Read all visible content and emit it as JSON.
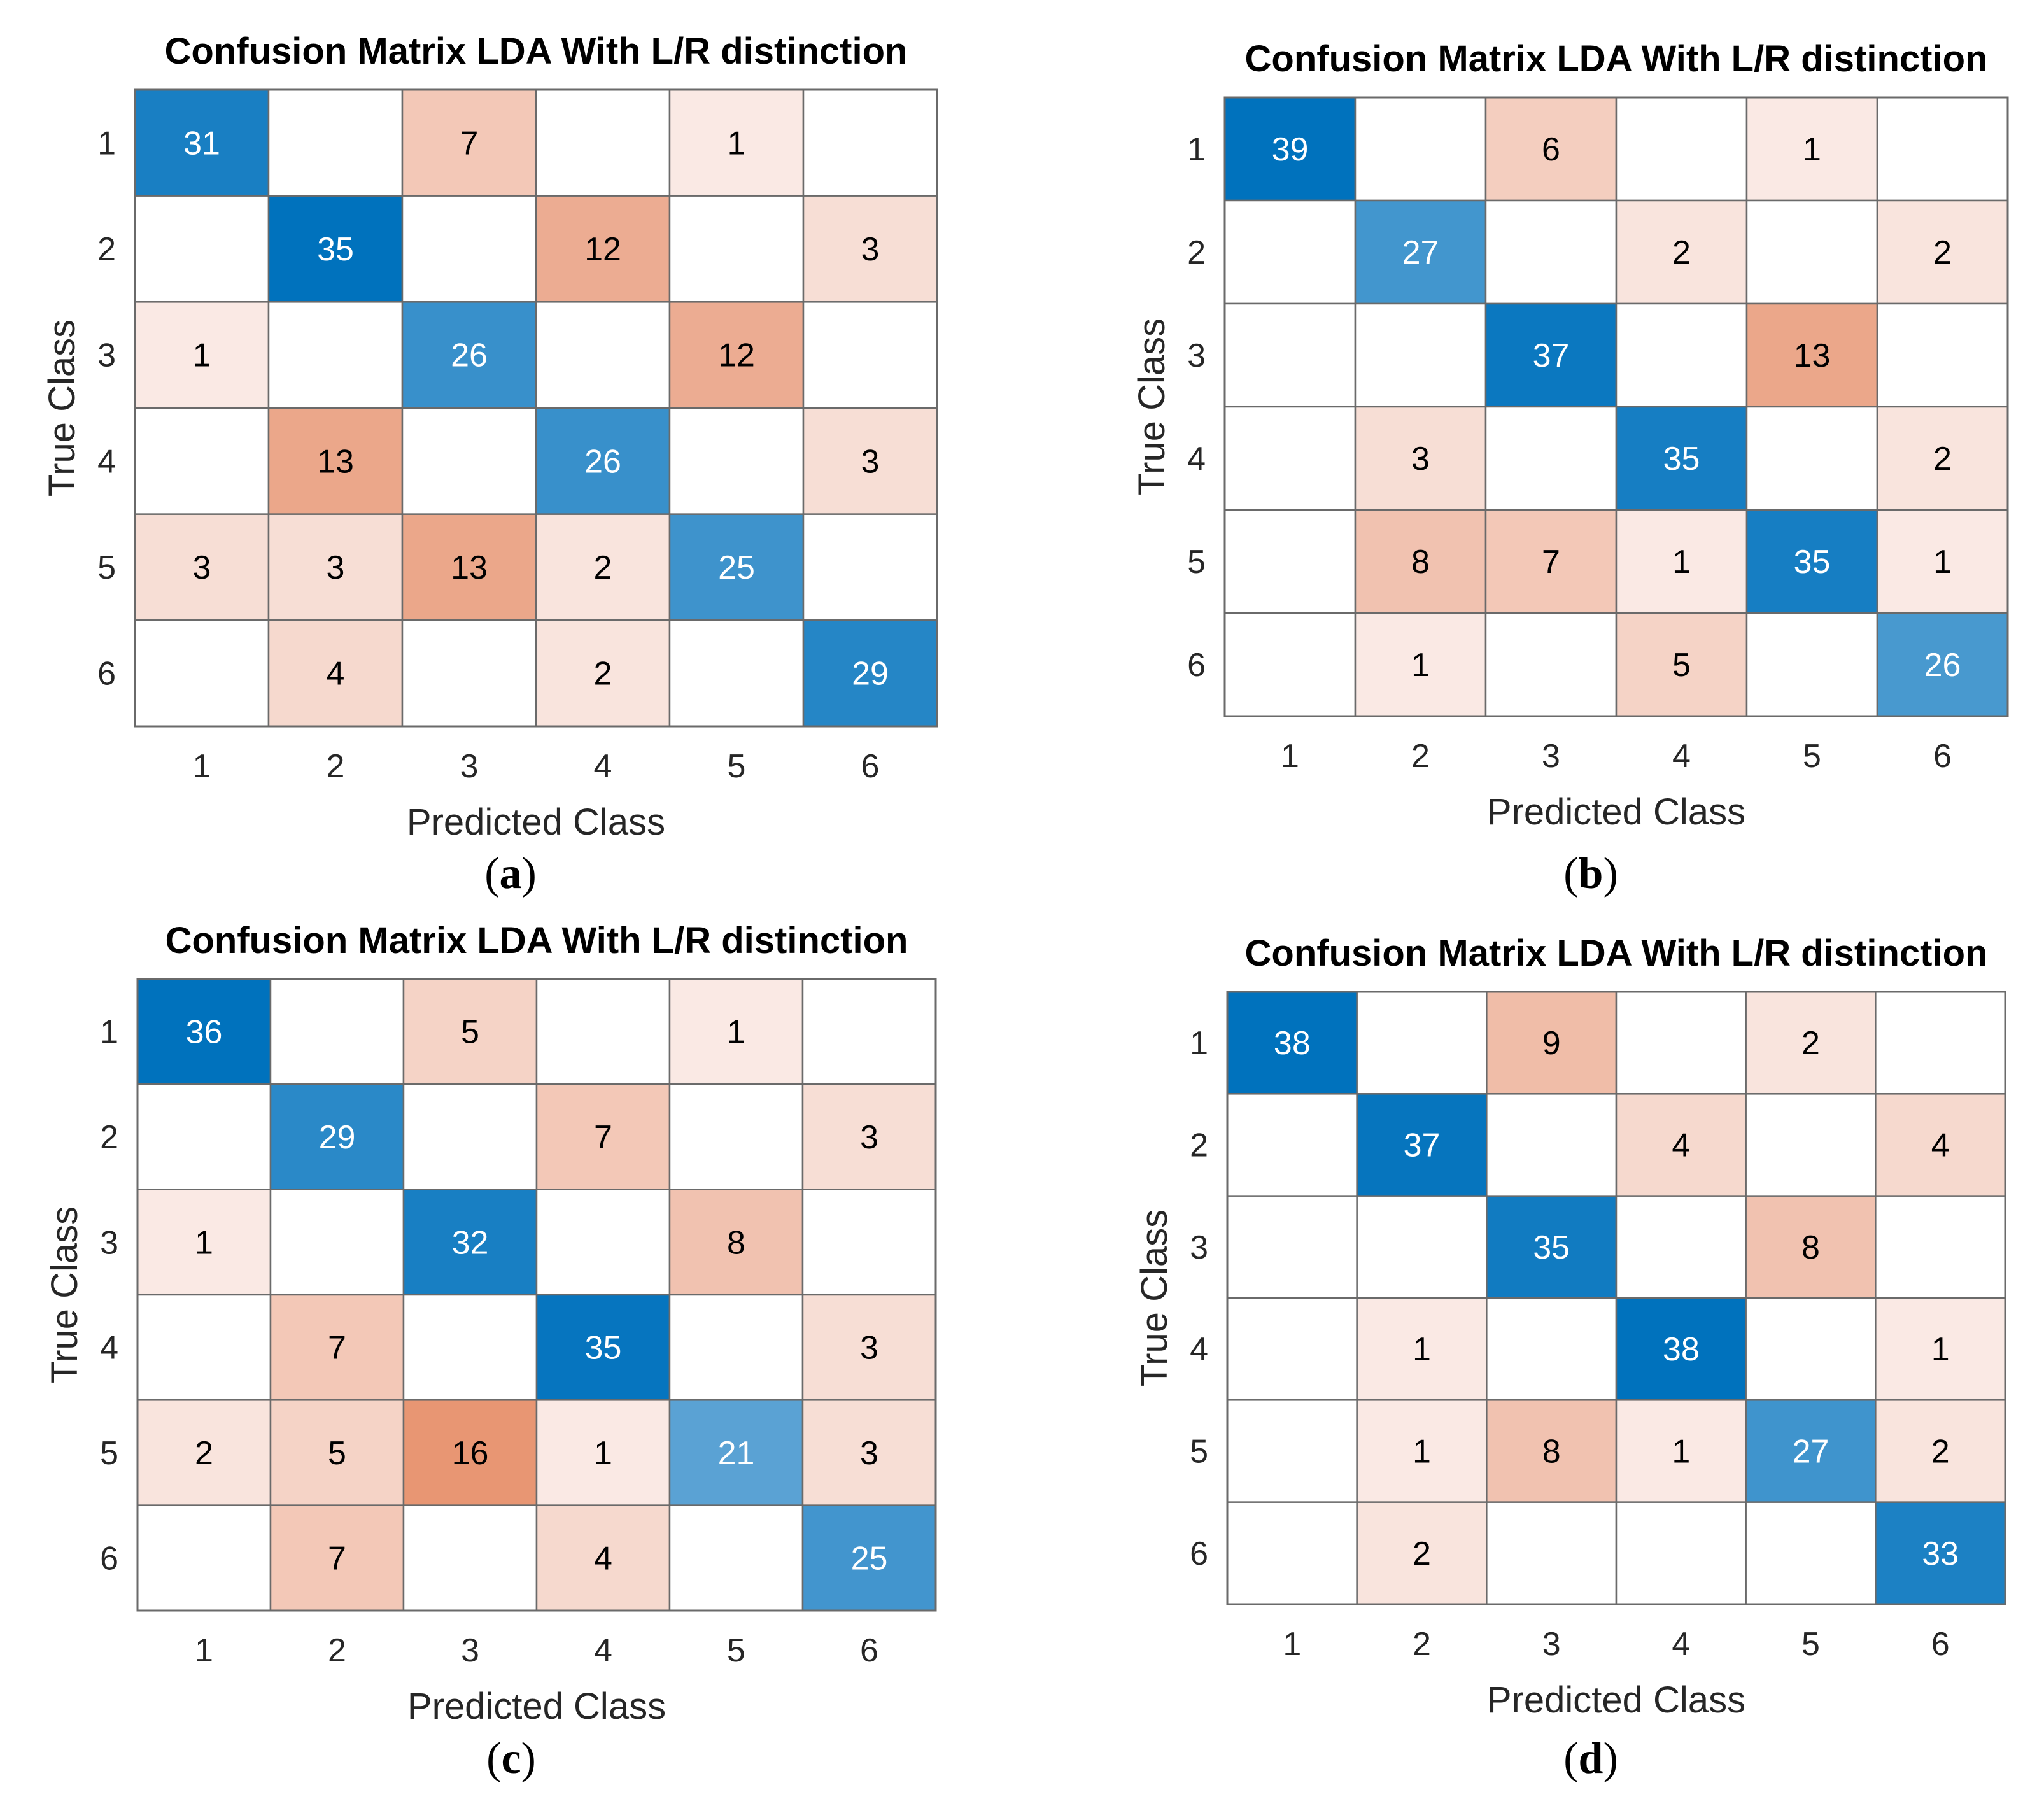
{
  "chart_data": [
    {
      "type": "heatmap",
      "panel_label": "a",
      "title": "Confusion Matrix LDA With L/R distinction",
      "xlabel": "Predicted Class",
      "ylabel": "True Class",
      "row_labels": [
        "1",
        "2",
        "3",
        "4",
        "5",
        "6"
      ],
      "col_labels": [
        "1",
        "2",
        "3",
        "4",
        "5",
        "6"
      ],
      "matrix": [
        [
          31,
          0,
          7,
          0,
          1,
          0
        ],
        [
          0,
          35,
          0,
          12,
          0,
          3
        ],
        [
          1,
          0,
          26,
          0,
          12,
          0
        ],
        [
          0,
          13,
          0,
          26,
          0,
          3
        ],
        [
          3,
          3,
          13,
          2,
          25,
          0
        ],
        [
          0,
          4,
          0,
          2,
          0,
          29
        ]
      ]
    },
    {
      "type": "heatmap",
      "panel_label": "b",
      "title": "Confusion Matrix LDA With L/R distinction",
      "xlabel": "Predicted Class",
      "ylabel": "True Class",
      "row_labels": [
        "1",
        "2",
        "3",
        "4",
        "5",
        "6"
      ],
      "col_labels": [
        "1",
        "2",
        "3",
        "4",
        "5",
        "6"
      ],
      "matrix": [
        [
          39,
          0,
          6,
          0,
          1,
          0
        ],
        [
          0,
          27,
          0,
          2,
          0,
          2
        ],
        [
          0,
          0,
          37,
          0,
          13,
          0
        ],
        [
          0,
          3,
          0,
          35,
          0,
          2
        ],
        [
          0,
          8,
          7,
          1,
          35,
          1
        ],
        [
          0,
          1,
          0,
          5,
          0,
          26
        ]
      ]
    },
    {
      "type": "heatmap",
      "panel_label": "c",
      "title": "Confusion Matrix LDA With L/R distinction",
      "xlabel": "Predicted Class",
      "ylabel": "True Class",
      "row_labels": [
        "1",
        "2",
        "3",
        "4",
        "5",
        "6"
      ],
      "col_labels": [
        "1",
        "2",
        "3",
        "4",
        "5",
        "6"
      ],
      "matrix": [
        [
          36,
          0,
          5,
          0,
          1,
          0
        ],
        [
          0,
          29,
          0,
          7,
          0,
          3
        ],
        [
          1,
          0,
          32,
          0,
          8,
          0
        ],
        [
          0,
          7,
          0,
          35,
          0,
          3
        ],
        [
          2,
          5,
          16,
          1,
          21,
          3
        ],
        [
          0,
          7,
          0,
          4,
          0,
          25
        ]
      ]
    },
    {
      "type": "heatmap",
      "panel_label": "d",
      "title": "Confusion Matrix LDA With L/R distinction",
      "xlabel": "Predicted Class",
      "ylabel": "True Class",
      "row_labels": [
        "1",
        "2",
        "3",
        "4",
        "5",
        "6"
      ],
      "col_labels": [
        "1",
        "2",
        "3",
        "4",
        "5",
        "6"
      ],
      "matrix": [
        [
          38,
          0,
          9,
          0,
          2,
          0
        ],
        [
          0,
          37,
          0,
          4,
          0,
          4
        ],
        [
          0,
          0,
          35,
          0,
          8,
          0
        ],
        [
          0,
          1,
          0,
          38,
          0,
          1
        ],
        [
          0,
          1,
          8,
          1,
          27,
          2
        ],
        [
          0,
          2,
          0,
          0,
          0,
          33
        ]
      ]
    }
  ],
  "colors": {
    "diagonal_light": "#d8e6f3",
    "diagonal_dark": "#0072bd",
    "offdiag_light": "#fbefec",
    "offdiag_dark": "#d95319",
    "empty_cell": "#ffffff",
    "grid_line": "#6a6a6a",
    "text_dark": "#000000",
    "text_light": "#ffffff"
  }
}
